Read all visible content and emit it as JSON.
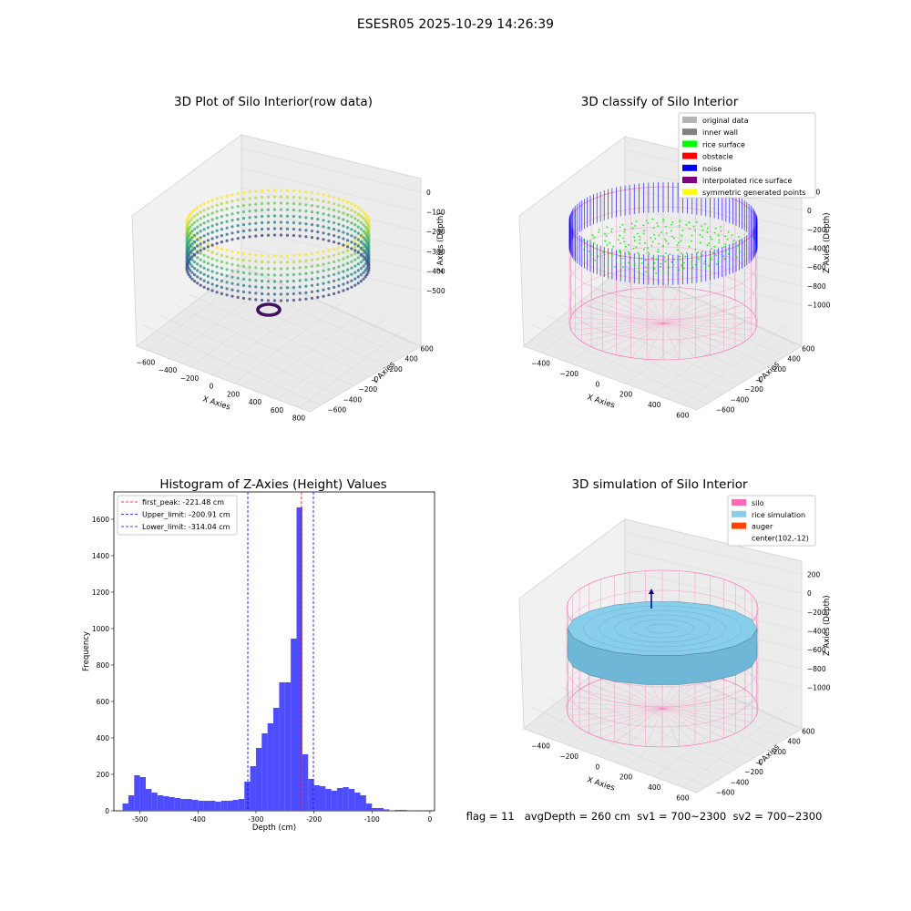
{
  "suptitle": "ESESR05 2025-10-29 14:26:39",
  "colors": {
    "background": "#ffffff",
    "hist_bar": "#4d4dff",
    "peak_line": "#ff0000",
    "limit_line": "#0000ff",
    "silo": "#ff69b4",
    "rice_sim": "#87ceeb",
    "auger": "#ff4500",
    "rice_surface": "#00ff00",
    "noise": "#0000ff",
    "original": "#b4b4b4",
    "inner_wall": "#808080",
    "obstacle": "#ff0000",
    "interpolated": "#800080",
    "symmetric": "#ffff00"
  },
  "chart_data": [
    {
      "type": "scatter",
      "projection": "3d",
      "title": "3D Plot of Silo Interior(row data)",
      "xlabel": "X Axies",
      "ylabel": "Y Axies",
      "zlabel": "Z Axies (Depth)",
      "x_ticks": [
        "−600",
        "−400",
        "−200",
        "0",
        "200",
        "400",
        "600",
        "800"
      ],
      "y_ticks": [
        "−600",
        "−400",
        "−200",
        "0",
        "200",
        "400",
        "600"
      ],
      "z_ticks": [
        "0",
        "−100",
        "−200",
        "−300",
        "−400",
        "−500"
      ],
      "colormap": "viridis",
      "zlim": [
        -550,
        0
      ]
    },
    {
      "type": "scatter",
      "projection": "3d",
      "title": "3D classify of Silo Interior",
      "xlabel": "X Axies",
      "ylabel": "Y Axies",
      "zlabel": "Z Axies (Depth)",
      "x_ticks": [
        "−400",
        "−200",
        "0",
        "200",
        "400",
        "600"
      ],
      "y_ticks": [
        "−600",
        "−400",
        "−200",
        "0",
        "200",
        "400",
        "600"
      ],
      "z_ticks": [
        "200",
        "0",
        "−200",
        "−400",
        "−600",
        "−800",
        "−1000"
      ],
      "zlim": [
        -1000,
        200
      ],
      "legend_position": "top-right",
      "legend": [
        {
          "label": "original data",
          "color": "#b4b4b4"
        },
        {
          "label": "inner wall",
          "color": "#808080"
        },
        {
          "label": "rice surface",
          "color": "#00ff00"
        },
        {
          "label": "obstacle",
          "color": "#ff0000"
        },
        {
          "label": "noise",
          "color": "#0000ff"
        },
        {
          "label": "interpolated rice surface",
          "color": "#800080"
        },
        {
          "label": "symmetric generated points",
          "color": "#ffff00"
        }
      ]
    },
    {
      "type": "bar",
      "title": "Histogram of Z-Axies (Height) Values",
      "xlabel": "Depth (cm)",
      "ylabel": "Frequency",
      "xlim": [
        -545,
        8
      ],
      "ylim": [
        0,
        1750
      ],
      "x_ticks": [
        -500,
        -400,
        -300,
        -200,
        -100,
        0
      ],
      "y_ticks": [
        0,
        200,
        400,
        600,
        800,
        1000,
        1200,
        1400,
        1600
      ],
      "bin_width": 10,
      "bins_start": [
        -530,
        -520,
        -510,
        -500,
        -490,
        -480,
        -470,
        -460,
        -450,
        -440,
        -430,
        -420,
        -410,
        -400,
        -390,
        -380,
        -370,
        -360,
        -350,
        -340,
        -330,
        -320,
        -310,
        -300,
        -290,
        -280,
        -270,
        -260,
        -250,
        -240,
        -230,
        -220,
        -210,
        -200,
        -190,
        -180,
        -170,
        -160,
        -150,
        -140,
        -130,
        -120,
        -110,
        -100,
        -90,
        -80,
        -70,
        -60,
        -50,
        -40,
        -30,
        -20
      ],
      "values": [
        40,
        85,
        195,
        185,
        120,
        100,
        85,
        80,
        75,
        70,
        65,
        65,
        60,
        55,
        55,
        55,
        50,
        55,
        55,
        60,
        65,
        160,
        245,
        345,
        425,
        480,
        565,
        705,
        705,
        945,
        1665,
        310,
        175,
        140,
        135,
        120,
        110,
        125,
        130,
        120,
        100,
        85,
        40,
        15,
        15,
        8,
        2,
        5,
        5,
        1,
        0,
        0
      ],
      "vlines": [
        {
          "x": -221.48,
          "label": "first_peak: -221.48 cm",
          "color": "#ff0000"
        },
        {
          "x": -200.91,
          "label": "Upper_limit: -200.91 cm",
          "color": "#0000ff"
        },
        {
          "x": -314.04,
          "label": "Lower_limit: -314.04 cm",
          "color": "#0000ff"
        }
      ],
      "legend_position": "top-left",
      "grid": false
    },
    {
      "type": "surface",
      "projection": "3d",
      "title": "3D simulation of Silo Interior",
      "xlabel": "X Axies",
      "ylabel": "Y Axies",
      "zlabel": "Z Axies (Depth)",
      "x_ticks": [
        "−400",
        "−200",
        "0",
        "200",
        "400",
        "600"
      ],
      "y_ticks": [
        "−600",
        "−400",
        "−200",
        "0",
        "200",
        "400",
        "600"
      ],
      "z_ticks": [
        "200",
        "0",
        "−200",
        "−400",
        "−600",
        "−800",
        "−1000"
      ],
      "zlim": [
        -1000,
        200
      ],
      "legend_position": "top-right",
      "legend": [
        {
          "label": "silo",
          "color": "#ff69b4"
        },
        {
          "label": "rice simulation",
          "color": "#87ceeb"
        },
        {
          "label": "auger",
          "color": "#ff4500"
        },
        {
          "label": "center(102,-12)",
          "color": ""
        }
      ]
    }
  ],
  "footer": "flag = 11   avgDepth = 260 cm  sv1 = 700~2300  sv2 = 700~2300"
}
